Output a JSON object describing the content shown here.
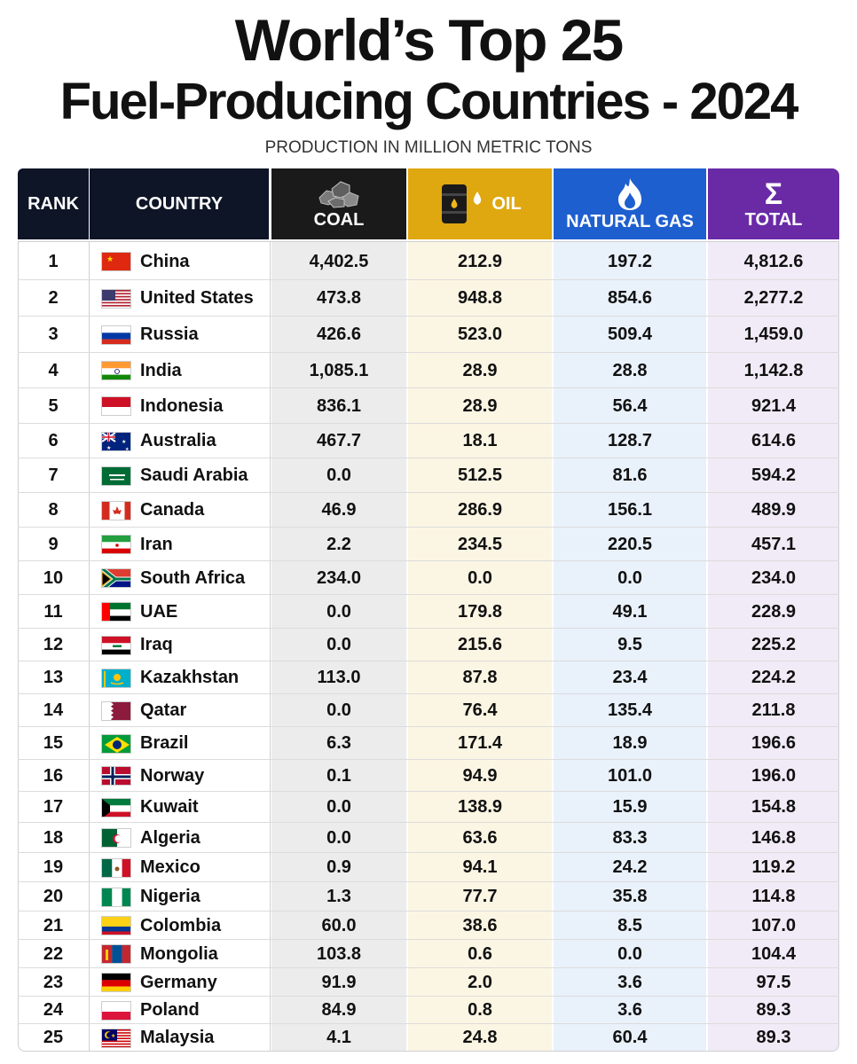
{
  "title_line1": "World’s Top 25",
  "title_line2": "Fuel-Producing Countries - 2024",
  "subtitle": "PRODUCTION IN MILLION METRIC TONS",
  "headers": {
    "rank": "RANK",
    "country": "COUNTRY",
    "coal": "COAL",
    "oil": "OIL",
    "gas": "NATURAL GAS",
    "total": "TOTAL"
  },
  "icons": {
    "coal": "coal-lumps-icon",
    "oil": "oil-barrel-drop-icon",
    "gas": "flame-icon",
    "total": "sigma-icon"
  },
  "colors": {
    "dark_header": "#0d1526",
    "coal_header": "#1a1a1a",
    "oil_header": "#e0a810",
    "gas_header": "#1e5fd0",
    "total_header": "#6a2aa6",
    "coal_column": "#ececec",
    "oil_column": "#fbf5e3",
    "gas_column": "#e9f1fb",
    "total_column": "#f1ebf7"
  },
  "chart_data": {
    "type": "table",
    "title": "World’s Top 25 Fuel-Producing Countries - 2024",
    "subtitle": "PRODUCTION IN MILLION METRIC TONS",
    "columns": [
      "RANK",
      "COUNTRY",
      "COAL",
      "OIL",
      "NATURAL GAS",
      "TOTAL"
    ],
    "rows": [
      {
        "rank": "1",
        "country": "China",
        "flag": "china-flag",
        "coal": "4,402.5",
        "oil": "212.9",
        "gas": "197.2",
        "total": "4,812.6"
      },
      {
        "rank": "2",
        "country": "United States",
        "flag": "usa-flag",
        "coal": "473.8",
        "oil": "948.8",
        "gas": "854.6",
        "total": "2,277.2"
      },
      {
        "rank": "3",
        "country": "Russia",
        "flag": "russia-flag",
        "coal": "426.6",
        "oil": "523.0",
        "gas": "509.4",
        "total": "1,459.0"
      },
      {
        "rank": "4",
        "country": "India",
        "flag": "india-flag",
        "coal": "1,085.1",
        "oil": "28.9",
        "gas": "28.8",
        "total": "1,142.8"
      },
      {
        "rank": "5",
        "country": "Indonesia",
        "flag": "indonesia-flag",
        "coal": "836.1",
        "oil": "28.9",
        "gas": "56.4",
        "total": "921.4"
      },
      {
        "rank": "6",
        "country": "Australia",
        "flag": "australia-flag",
        "coal": "467.7",
        "oil": "18.1",
        "gas": "128.7",
        "total": "614.6"
      },
      {
        "rank": "7",
        "country": "Saudi Arabia",
        "flag": "saudi-arabia-flag",
        "coal": "0.0",
        "oil": "512.5",
        "gas": "81.6",
        "total": "594.2"
      },
      {
        "rank": "8",
        "country": "Canada",
        "flag": "canada-flag",
        "coal": "46.9",
        "oil": "286.9",
        "gas": "156.1",
        "total": "489.9"
      },
      {
        "rank": "9",
        "country": "Iran",
        "flag": "iran-flag",
        "coal": "2.2",
        "oil": "234.5",
        "gas": "220.5",
        "total": "457.1"
      },
      {
        "rank": "10",
        "country": "South Africa",
        "flag": "south-africa-flag",
        "coal": "234.0",
        "oil": "0.0",
        "gas": "0.0",
        "total": "234.0"
      },
      {
        "rank": "11",
        "country": "UAE",
        "flag": "uae-flag",
        "coal": "0.0",
        "oil": "179.8",
        "gas": "49.1",
        "total": "228.9"
      },
      {
        "rank": "12",
        "country": "Iraq",
        "flag": "iraq-flag",
        "coal": "0.0",
        "oil": "215.6",
        "gas": "9.5",
        "total": "225.2"
      },
      {
        "rank": "13",
        "country": "Kazakhstan",
        "flag": "kazakhstan-flag",
        "coal": "113.0",
        "oil": "87.8",
        "gas": "23.4",
        "total": "224.2"
      },
      {
        "rank": "14",
        "country": "Qatar",
        "flag": "qatar-flag",
        "coal": "0.0",
        "oil": "76.4",
        "gas": "135.4",
        "total": "211.8"
      },
      {
        "rank": "15",
        "country": "Brazil",
        "flag": "brazil-flag",
        "coal": "6.3",
        "oil": "171.4",
        "gas": "18.9",
        "total": "196.6"
      },
      {
        "rank": "16",
        "country": "Norway",
        "flag": "norway-flag",
        "coal": "0.1",
        "oil": "94.9",
        "gas": "101.0",
        "total": "196.0"
      },
      {
        "rank": "17",
        "country": "Kuwait",
        "flag": "kuwait-flag",
        "coal": "0.0",
        "oil": "138.9",
        "gas": "15.9",
        "total": "154.8"
      },
      {
        "rank": "18",
        "country": "Algeria",
        "flag": "algeria-flag",
        "coal": "0.0",
        "oil": "63.6",
        "gas": "83.3",
        "total": "146.8"
      },
      {
        "rank": "19",
        "country": "Mexico",
        "flag": "mexico-flag",
        "coal": "0.9",
        "oil": "94.1",
        "gas": "24.2",
        "total": "119.2"
      },
      {
        "rank": "20",
        "country": "Nigeria",
        "flag": "nigeria-flag",
        "coal": "1.3",
        "oil": "77.7",
        "gas": "35.8",
        "total": "114.8"
      },
      {
        "rank": "21",
        "country": "Colombia",
        "flag": "colombia-flag",
        "coal": "60.0",
        "oil": "38.6",
        "gas": "8.5",
        "total": "107.0"
      },
      {
        "rank": "22",
        "country": "Mongolia",
        "flag": "mongolia-flag",
        "coal": "103.8",
        "oil": "0.6",
        "gas": "0.0",
        "total": "104.4"
      },
      {
        "rank": "23",
        "country": "Germany",
        "flag": "germany-flag",
        "coal": "91.9",
        "oil": "2.0",
        "gas": "3.6",
        "total": "97.5"
      },
      {
        "rank": "24",
        "country": "Poland",
        "flag": "poland-flag",
        "coal": "84.9",
        "oil": "0.8",
        "gas": "3.6",
        "total": "89.3"
      },
      {
        "rank": "25",
        "country": "Malaysia",
        "flag": "malaysia-flag",
        "coal": "4.1",
        "oil": "24.8",
        "gas": "60.4",
        "total": "89.3"
      }
    ]
  }
}
